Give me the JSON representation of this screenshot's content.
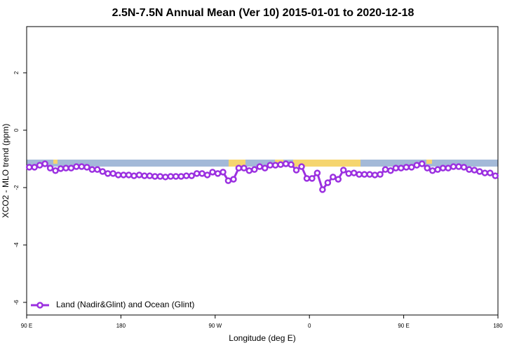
{
  "chart_data": {
    "type": "line",
    "title": "2.5N-7.5N Annual Mean (Ver 10)   2015-01-01 to 2020-12-18",
    "x_label": "Longitude (deg E)",
    "y_label": "XCO2 - MLO trend (ppm)",
    "xlim": [
      90,
      540
    ],
    "xticks": [
      {
        "value": 90,
        "label": "90 E"
      },
      {
        "value": 180,
        "label": "180"
      },
      {
        "value": 270,
        "label": "90 W"
      },
      {
        "value": 360,
        "label": "0"
      },
      {
        "value": 450,
        "label": "90 E"
      },
      {
        "value": 540,
        "label": "180"
      }
    ],
    "ylim": [
      -6.44,
      3.61
    ],
    "yticks": [
      -6,
      -4,
      -2,
      0,
      2
    ],
    "legend": "bottom-left",
    "x": [
      92.5,
      97.5,
      102.5,
      107.5,
      112.5,
      117.5,
      122.5,
      127.5,
      132.5,
      137.5,
      142.5,
      147.5,
      152.5,
      157.5,
      162.5,
      167.5,
      172.5,
      177.5,
      182.5,
      187.5,
      192.5,
      197.5,
      202.5,
      207.5,
      212.5,
      217.5,
      222.5,
      227.5,
      232.5,
      237.5,
      242.5,
      247.5,
      252.5,
      257.5,
      262.5,
      267.5,
      272.5,
      277.5,
      282.5,
      287.5,
      292.5,
      297.5,
      302.5,
      307.5,
      312.5,
      317.5,
      322.5,
      327.5,
      332.5,
      337.5,
      342.5,
      347.5,
      352.5,
      357.5,
      362.5,
      367.5,
      372.5,
      377.5,
      382.5,
      387.5,
      392.5,
      397.5,
      402.5,
      407.5,
      412.5,
      417.5,
      422.5,
      427.5,
      432.5,
      437.5,
      442.5,
      447.5,
      452.5,
      457.5,
      462.5,
      467.5,
      472.5,
      477.5,
      482.5,
      487.5,
      492.5,
      497.5,
      502.5,
      507.5,
      512.5,
      517.5,
      522.5,
      527.5,
      532.5,
      537.5
    ],
    "series": [
      {
        "name": "Land (Nadir&Glint) and Ocean (Glint)",
        "color": "#9b30e0",
        "values": [
          -1.29,
          -1.29,
          -1.22,
          -1.17,
          -1.32,
          -1.41,
          -1.34,
          -1.32,
          -1.32,
          -1.27,
          -1.27,
          -1.29,
          -1.37,
          -1.37,
          -1.44,
          -1.51,
          -1.51,
          -1.56,
          -1.56,
          -1.56,
          -1.59,
          -1.56,
          -1.59,
          -1.59,
          -1.61,
          -1.61,
          -1.63,
          -1.61,
          -1.61,
          -1.61,
          -1.59,
          -1.59,
          -1.51,
          -1.51,
          -1.56,
          -1.46,
          -1.51,
          -1.46,
          -1.76,
          -1.71,
          -1.32,
          -1.32,
          -1.41,
          -1.37,
          -1.27,
          -1.32,
          -1.22,
          -1.22,
          -1.2,
          -1.17,
          -1.2,
          -1.39,
          -1.27,
          -1.68,
          -1.68,
          -1.49,
          -2.07,
          -1.83,
          -1.63,
          -1.71,
          -1.39,
          -1.51,
          -1.49,
          -1.54,
          -1.54,
          -1.54,
          -1.56,
          -1.54,
          -1.37,
          -1.41,
          -1.32,
          -1.32,
          -1.29,
          -1.29,
          -1.22,
          -1.17,
          -1.32,
          -1.41,
          -1.37,
          -1.32,
          -1.32,
          -1.27,
          -1.27,
          -1.29,
          -1.37,
          -1.39,
          -1.44,
          -1.49,
          -1.49,
          -1.59
        ]
      }
    ]
  }
}
